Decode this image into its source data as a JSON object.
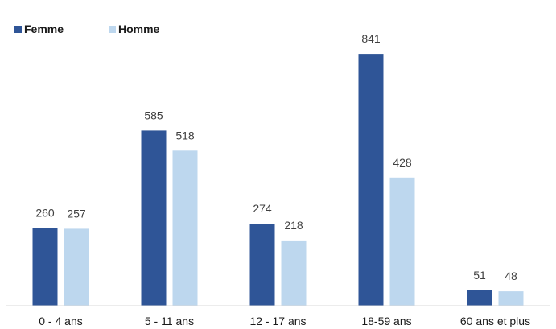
{
  "chart_data": {
    "type": "bar",
    "categories": [
      "0 - 4 ans",
      "5 - 11 ans",
      "12 - 17 ans",
      "18-59 ans",
      "60 ans et plus"
    ],
    "series": [
      {
        "name": "Femme",
        "values": [
          260,
          585,
          274,
          841,
          51
        ],
        "color": "#2f5597"
      },
      {
        "name": "Homme",
        "values": [
          257,
          518,
          218,
          428,
          48
        ],
        "color": "#bdd7ee"
      }
    ],
    "value_labels": {
      "Femme": [
        "260",
        "585",
        "274",
        "841",
        "51"
      ],
      "Homme": [
        "257",
        "518",
        "218",
        "428",
        "48"
      ]
    },
    "title": "",
    "xlabel": "",
    "ylabel": "",
    "ylim": [
      0,
      900
    ],
    "grid": false,
    "legend": "top-left"
  }
}
